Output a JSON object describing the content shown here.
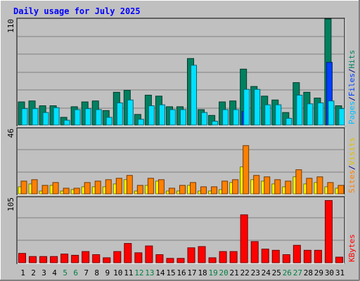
{
  "chart_data": [
    {
      "type": "bar",
      "title": "Daily usage for July 2025",
      "categories": [
        "1",
        "2",
        "3",
        "4",
        "5",
        "6",
        "7",
        "8",
        "9",
        "10",
        "11",
        "12",
        "13",
        "14",
        "15",
        "16",
        "17",
        "18",
        "19",
        "20",
        "21",
        "22",
        "23",
        "24",
        "25",
        "26",
        "27",
        "28",
        "29",
        "30",
        "31"
      ],
      "weekend_days": [
        "5",
        "6",
        "12",
        "13",
        "19",
        "20",
        "26",
        "27"
      ],
      "ymax_label": "110",
      "ylim": [
        0,
        110
      ],
      "grid": true,
      "series": [
        {
          "name": "Hits",
          "color": "#008060",
          "values": [
            24,
            25,
            20,
            20,
            8,
            19,
            24,
            25,
            15,
            34,
            36,
            11,
            31,
            30,
            19,
            19,
            69,
            16,
            10,
            24,
            25,
            58,
            40,
            30,
            26,
            13,
            44,
            34,
            28,
            110,
            20
          ]
        },
        {
          "name": "Files",
          "color": "#0040ff",
          "values": [
            0,
            0,
            0,
            0,
            0,
            0,
            0,
            0,
            0,
            0,
            0,
            0,
            0,
            0,
            0,
            0,
            0,
            0,
            0,
            0,
            0,
            14,
            0,
            0,
            0,
            0,
            0,
            0,
            0,
            65,
            0
          ]
        },
        {
          "name": "Pages",
          "color": "#00e0ff",
          "values": [
            17,
            17,
            13,
            18,
            5,
            16,
            17,
            16,
            8,
            23,
            26,
            6,
            20,
            21,
            16,
            16,
            62,
            13,
            4,
            16,
            16,
            37,
            37,
            21,
            21,
            7,
            31,
            22,
            23,
            25,
            17
          ]
        }
      ],
      "axis_legend": [
        "Pages",
        "/",
        "Files",
        "/",
        "Hits"
      ],
      "legend_colors": {
        "Pages": "#00c0ff",
        "Files": "#0040ff",
        "Hits": "#008060",
        "/": "#000080"
      }
    },
    {
      "type": "bar",
      "categories": [
        "1",
        "2",
        "3",
        "4",
        "5",
        "6",
        "7",
        "8",
        "9",
        "10",
        "11",
        "12",
        "13",
        "14",
        "15",
        "16",
        "17",
        "18",
        "19",
        "20",
        "21",
        "22",
        "23",
        "24",
        "25",
        "26",
        "27",
        "28",
        "29",
        "30",
        "31"
      ],
      "ymax_label": "46",
      "ylim": [
        0,
        46
      ],
      "grid": true,
      "series": [
        {
          "name": "Visits",
          "color": "#ffff00",
          "values": [
            5,
            7,
            2,
            6,
            2,
            3,
            5,
            5,
            5,
            7,
            10,
            2,
            6,
            9,
            2,
            2,
            6,
            2,
            2,
            3,
            8,
            19,
            10,
            9,
            7,
            5,
            12,
            7,
            8,
            5,
            4
          ]
        },
        {
          "name": "Sites",
          "color": "#ff8000",
          "values": [
            9,
            10,
            6,
            8,
            4,
            4,
            8,
            9,
            10,
            11,
            13,
            6,
            11,
            10,
            4,
            6,
            8,
            5,
            5,
            9,
            10,
            34,
            13,
            12,
            10,
            9,
            17,
            11,
            12,
            8,
            6
          ]
        }
      ],
      "axis_legend": [
        "Sites",
        "/",
        "Visits"
      ],
      "legend_colors": {
        "Sites": "#ff8000",
        "Visits": "#e0c000",
        "/": "#000080"
      }
    },
    {
      "type": "bar",
      "categories": [
        "1",
        "2",
        "3",
        "4",
        "5",
        "6",
        "7",
        "8",
        "9",
        "10",
        "11",
        "12",
        "13",
        "14",
        "15",
        "16",
        "17",
        "18",
        "19",
        "20",
        "21",
        "22",
        "23",
        "24",
        "25",
        "26",
        "27",
        "28",
        "29",
        "30",
        "31"
      ],
      "ymax_label": "105",
      "ylim": [
        0,
        105
      ],
      "grid": true,
      "series": [
        {
          "name": "KBytes",
          "color": "#ff0000",
          "values": [
            15,
            10,
            10,
            10,
            14,
            12,
            18,
            13,
            8,
            18,
            31,
            16,
            27,
            13,
            7,
            7,
            24,
            26,
            8,
            18,
            18,
            77,
            34,
            22,
            20,
            13,
            28,
            20,
            20,
            100,
            9
          ]
        }
      ],
      "axis_legend": [
        "KBytes"
      ],
      "legend_colors": {
        "KBytes": "#ff0000"
      }
    }
  ]
}
